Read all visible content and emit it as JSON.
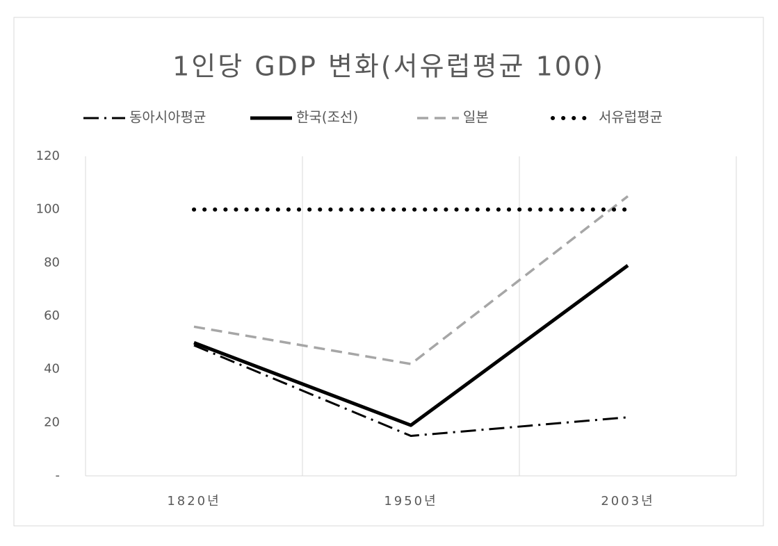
{
  "chart_data": {
    "type": "line",
    "title": "1인당 GDP 변화(서유럽평균 100)",
    "categories": [
      "1820년",
      "1950년",
      "2003년"
    ],
    "series": [
      {
        "name": "동아시아평균",
        "color": "#000000",
        "style": "dashdot",
        "values": [
          49,
          15,
          22
        ]
      },
      {
        "name": "한국(조선)",
        "color": "#000000",
        "style": "solid",
        "values": [
          50,
          19,
          79
        ]
      },
      {
        "name": "일본",
        "color": "#a6a6a6",
        "style": "dashed",
        "values": [
          56,
          42,
          105
        ]
      },
      {
        "name": "서유럽평균",
        "color": "#000000",
        "style": "dotted",
        "values": [
          100,
          100,
          100
        ]
      }
    ],
    "ylim": [
      0,
      120
    ],
    "yticks": [
      {
        "value": 0,
        "label": "-"
      },
      20,
      40,
      60,
      80,
      100,
      120
    ],
    "grid": true,
    "legend": "top"
  }
}
